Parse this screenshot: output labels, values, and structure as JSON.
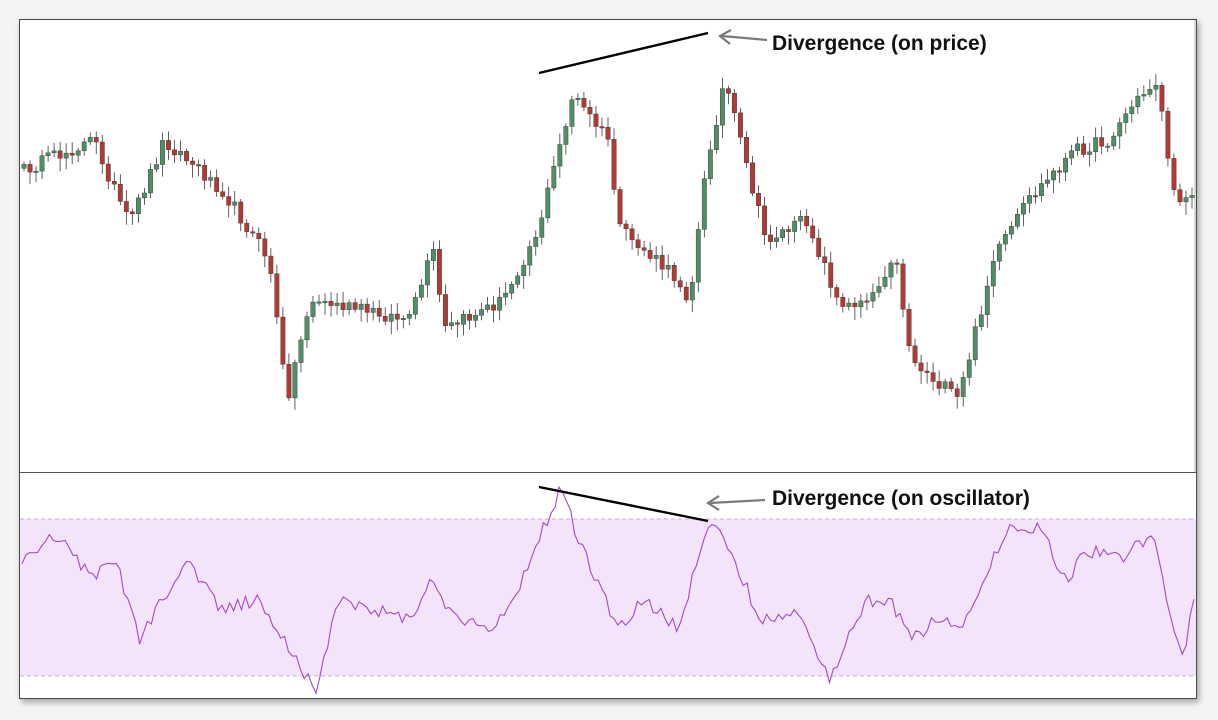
{
  "chart_data": [
    {
      "type": "candlestick",
      "panel": "price",
      "title": "",
      "xlabel": "",
      "ylabel": "",
      "axes_visible": false,
      "grid": false,
      "colors": {
        "up": "#4f8f66",
        "down": "#b23a35",
        "wick": "#3a3a3a"
      },
      "ohlc": [],
      "annotations": [
        {
          "text": "Divergence (on price)",
          "type": "trendline-with-arrow"
        }
      ]
    },
    {
      "type": "line",
      "panel": "oscillator",
      "title": "",
      "xlabel": "",
      "ylabel": "",
      "axes_visible": false,
      "grid": false,
      "band": {
        "color": "#f3e3fb",
        "line_style": "dashed"
      },
      "line_color": "#a24cc0",
      "series": [
        {
          "values": []
        }
      ],
      "annotations": [
        {
          "text": "Divergence (on oscillator)",
          "type": "trendline-with-arrow"
        }
      ]
    }
  ]
}
